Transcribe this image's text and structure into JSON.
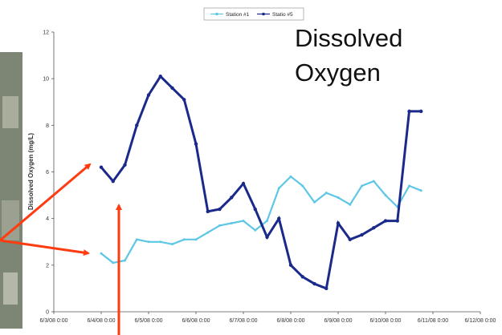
{
  "chart_data": {
    "type": "line",
    "title_lines": [
      "Dissolved",
      "Oxygen"
    ],
    "y_label": "Dissolved Oxygen (mg/L)",
    "x": [
      "6/4/08 0:00",
      "6/4/08 6:00",
      "6/4/08 12:00",
      "6/4/08 18:00",
      "6/5/08 0:00",
      "6/5/08 6:00",
      "6/5/08 12:00",
      "6/5/08 18:00",
      "6/6/08 0:00",
      "6/6/08 6:00",
      "6/6/08 12:00",
      "6/6/08 18:00",
      "6/7/08 0:00",
      "6/7/08 6:00",
      "6/7/08 12:00",
      "6/7/08 18:00",
      "6/8/08 0:00",
      "6/8/08 6:00",
      "6/8/08 12:00",
      "6/8/08 18:00",
      "6/9/08 0:00",
      "6/9/08 6:00",
      "6/9/08 12:00",
      "6/9/08 18:00",
      "6/10/08 0:00",
      "6/10/08 6:00",
      "6/10/08 12:00",
      "6/10/08 18:00"
    ],
    "series": [
      {
        "name": "Station #1",
        "color": "#5ec6e6",
        "values": [
          2.5,
          2.1,
          2.2,
          3.1,
          3.0,
          3.0,
          2.9,
          3.1,
          3.1,
          3.4,
          3.7,
          3.8,
          3.9,
          3.5,
          3.9,
          5.3,
          5.8,
          5.4,
          4.7,
          5.1,
          4.9,
          4.6,
          5.4,
          5.6,
          5.0,
          4.5,
          5.4,
          5.2
        ]
      },
      {
        "name": "Statio #5",
        "color": "#1b2a8a",
        "values": [
          6.2,
          5.6,
          6.3,
          8.0,
          9.3,
          10.1,
          9.6,
          9.1,
          7.2,
          4.3,
          4.4,
          4.9,
          5.5,
          4.4,
          3.2,
          4.0,
          2.0,
          1.5,
          1.2,
          1.0,
          3.8,
          3.1,
          3.3,
          3.6,
          3.9,
          3.9,
          8.6,
          8.6
        ]
      }
    ],
    "xlim": [
      "6/3/08 0:00",
      "6/12/08 0:00"
    ],
    "xticks": [
      "6/3/08 0:00",
      "6/4/08 0:00",
      "6/5/08 0:00",
      "6/6/08 0:00",
      "6/7/08 0:00",
      "6/8/08 0:00",
      "6/9/08 0:00",
      "6/10/08 0:00",
      "6/11/08 0:00",
      "6/12/08 0:00"
    ],
    "ylim": [
      0,
      12
    ],
    "yticks": [
      0,
      2,
      4,
      6,
      8,
      10,
      12
    ],
    "legend": "top"
  }
}
